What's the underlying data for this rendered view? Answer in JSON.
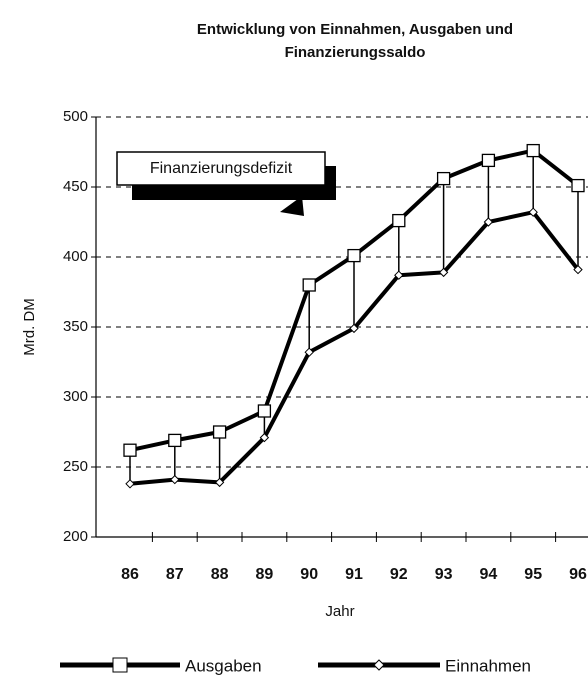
{
  "chart_data": {
    "type": "line",
    "title": [
      "Entwicklung von  Einnahmen, Ausgaben und",
      "Finanzierungssaldo"
    ],
    "x_label": "Jahr",
    "y_label": "Mrd. DM",
    "annotation": "Finanzierungsdefizit",
    "categories": [
      "86",
      "87",
      "88",
      "89",
      "90",
      "91",
      "92",
      "93",
      "94",
      "95",
      "96"
    ],
    "series": [
      {
        "name": "Ausgaben",
        "color": "#000000",
        "values": [
          262,
          269,
          275,
          290,
          380,
          401,
          426,
          456,
          469,
          476,
          451
        ]
      },
      {
        "name": "Einnahmen",
        "color": "#000000",
        "values": [
          238,
          241,
          239,
          271,
          332,
          349,
          387,
          389,
          425,
          432,
          391
        ]
      }
    ],
    "ylim": [
      200,
      500
    ],
    "yticks": [
      200,
      250,
      300,
      350,
      400,
      450,
      500
    ],
    "grid": true
  }
}
